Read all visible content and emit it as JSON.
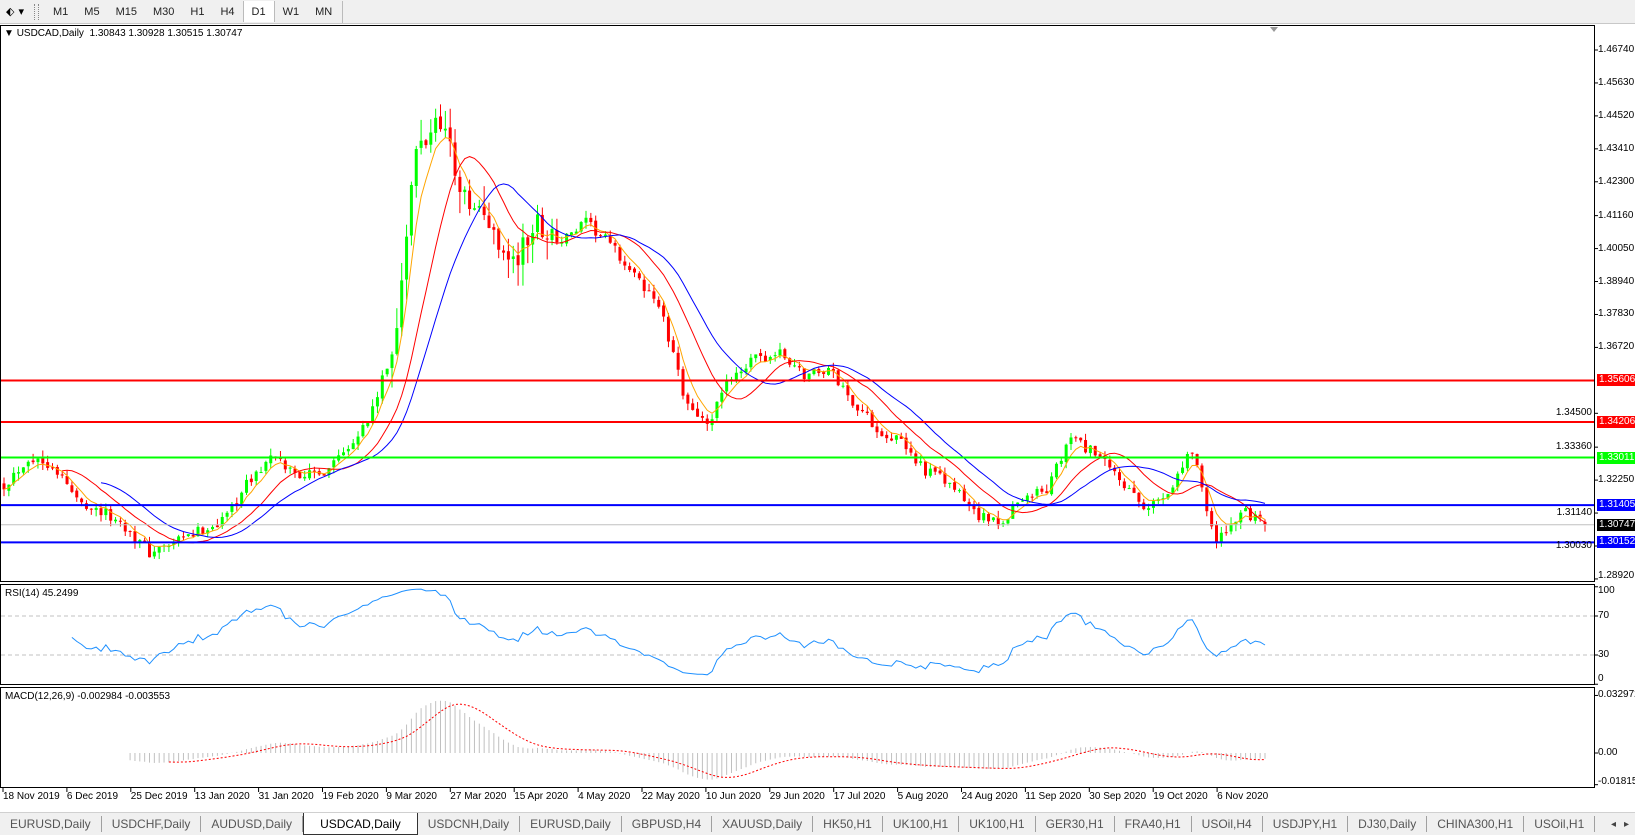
{
  "toolbar": {
    "timeframes": [
      "M1",
      "M5",
      "M15",
      "M30",
      "H1",
      "H4",
      "D1",
      "W1",
      "MN"
    ],
    "active_timeframe": "D1"
  },
  "main": {
    "symbol_label": "USDCAD,Daily",
    "ohlc": "1.30843 1.30928 1.30515 1.30747"
  },
  "rsi": {
    "label": "RSI(14) 45.2499",
    "ticks": [
      "100",
      "70",
      "30",
      "0"
    ]
  },
  "macd": {
    "label": "MACD(12,26,9) -0.002984 -0.003553",
    "ticks": [
      "0.032972",
      "0.00",
      "-0.01815"
    ]
  },
  "tabs": [
    "EURUSD,Daily",
    "USDCHF,Daily",
    "AUDUSD,Daily",
    "USDCAD,Daily",
    "USDCNH,Daily",
    "EURUSD,Daily",
    "GBPUSD,H4",
    "XAUUSD,Daily",
    "HK50,H1",
    "UK100,H1",
    "UK100,H1",
    "GER30,H1",
    "FRA40,H1",
    "USOil,H4",
    "USDJPY,H1",
    "DJ30,Daily",
    "CHINA300,H1",
    "USOil,H1"
  ],
  "active_tab": "USDCAD,Daily",
  "chart_data": {
    "type": "candlestick",
    "symbol": "USDCAD",
    "timeframe": "Daily",
    "last_bar": {
      "open": 1.30843,
      "high": 1.30928,
      "low": 1.30515,
      "close": 1.30747
    },
    "weekly_closes_approx": [
      1.321,
      1.33,
      1.328,
      1.316,
      1.312,
      1.307,
      1.298,
      1.301,
      1.305,
      1.309,
      1.321,
      1.33,
      1.325,
      1.324,
      1.333,
      1.342,
      1.365,
      1.432,
      1.446,
      1.416,
      1.409,
      1.395,
      1.409,
      1.403,
      1.409,
      1.402,
      1.391,
      1.382,
      1.352,
      1.34,
      1.358,
      1.363,
      1.365,
      1.358,
      1.36,
      1.349,
      1.34,
      1.335,
      1.326,
      1.321,
      1.312,
      1.307,
      1.317,
      1.319,
      1.337,
      1.331,
      1.323,
      1.312,
      1.319,
      1.333,
      1.301,
      1.312,
      1.30747
    ],
    "price_ticks": [
      "1.46740",
      "1.45630",
      "1.44520",
      "1.43410",
      "1.42300",
      "1.41160",
      "1.40050",
      "1.38940",
      "1.37830",
      "1.36720",
      "1.34500",
      "1.33360",
      "1.32250",
      "1.31140",
      "1.30030",
      "1.28920"
    ],
    "ylim": [
      1.2892,
      1.4674
    ],
    "date_labels": [
      "18 Nov 2019",
      "6 Dec 2019",
      "25 Dec 2019",
      "13 Jan 2020",
      "31 Jan 2020",
      "19 Feb 2020",
      "9 Mar 2020",
      "27 Mar 2020",
      "15 Apr 2020",
      "4 May 2020",
      "22 May 2020",
      "10 Jun 2020",
      "29 Jun 2020",
      "17 Jul 2020",
      "5 Aug 2020",
      "24 Aug 2020",
      "11 Sep 2020",
      "30 Sep 2020",
      "19 Oct 2020",
      "6 Nov 2020"
    ],
    "levels": [
      {
        "price": "1.35606",
        "color": "#ff0000"
      },
      {
        "price": "1.34206",
        "color": "#ff0000"
      },
      {
        "price": "1.33011",
        "color": "#00ff00"
      },
      {
        "price": "1.31405",
        "color": "#0000ff"
      },
      {
        "price": "1.30152",
        "color": "#0000ff"
      }
    ],
    "bid": {
      "price": "1.30747",
      "color": "#000000"
    },
    "moving_averages": [
      {
        "color": "#ffa500"
      },
      {
        "color": "#ff0000"
      },
      {
        "color": "#0000ff"
      }
    ],
    "colors": {
      "bull": "#00ff00",
      "bear": "#ff0000",
      "rsi": "#1e90ff",
      "macd_hist": "#c0c0c0",
      "macd_signal": "#ff0000"
    },
    "rsi_levels": [
      70,
      30
    ]
  }
}
